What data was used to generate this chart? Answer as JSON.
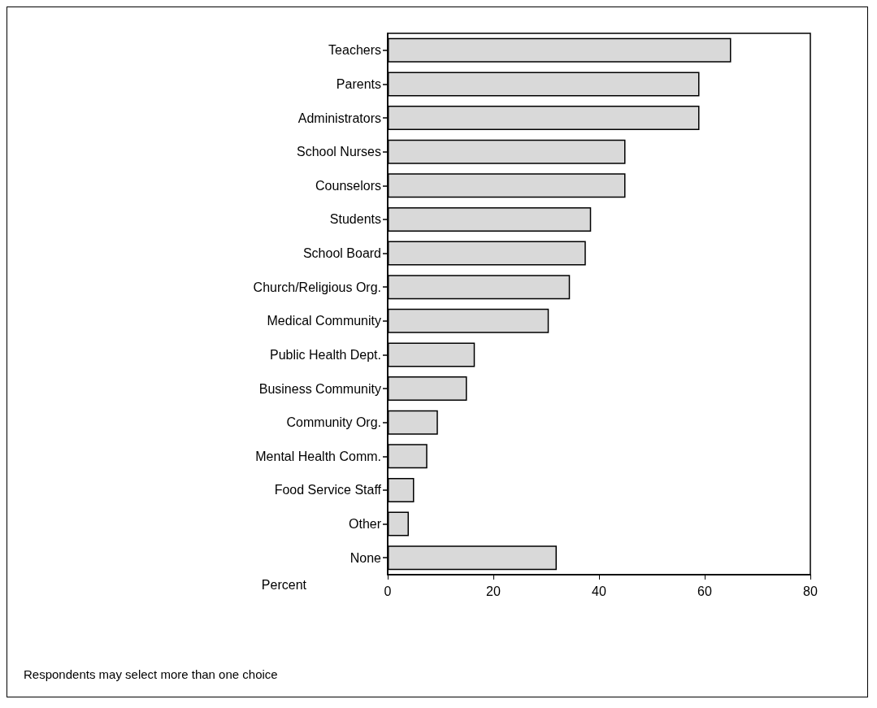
{
  "chart_data": {
    "type": "bar",
    "orientation": "horizontal",
    "categories": [
      "Teachers",
      "Parents",
      "Administrators",
      "School Nurses",
      "Counselors",
      "Students",
      "School Board",
      "Church/Religious Org.",
      "Medical Community",
      "Public Health Dept.",
      "Business Community",
      "Community Org.",
      "Mental Health Comm.",
      "Food Service Staff",
      "Other",
      "None"
    ],
    "values": [
      65,
      59,
      59,
      45,
      45,
      38.5,
      37.5,
      34.5,
      30.5,
      16.5,
      15,
      9.5,
      7.5,
      5,
      4,
      32
    ],
    "color": "#d9d9d9",
    "xlabel": "Percent",
    "xlim": [
      0,
      80
    ],
    "xticks": [
      0,
      20,
      40,
      60,
      80
    ],
    "grid": false,
    "annotations": [
      "Respondents may select more than one choice"
    ]
  }
}
